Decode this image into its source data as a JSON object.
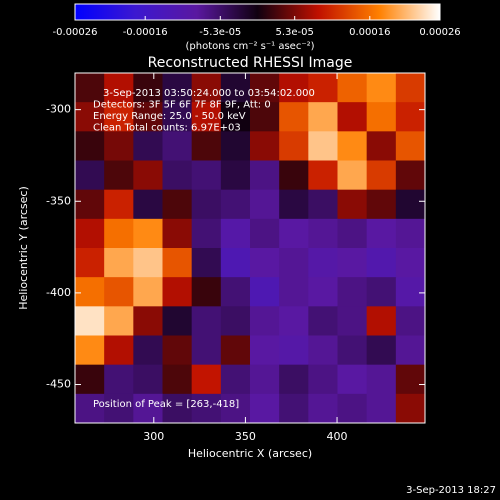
{
  "chart_data": {
    "type": "heatmap",
    "title": "Reconstructed RHESSI Image",
    "xlabel": "Heliocentric X (arcsec)",
    "ylabel": "Heliocentric Y (arcsec)",
    "colorbar_label": "(photons cm⁻² s⁻¹ asec⁻²)",
    "annotations": [
      "3-Sep-2013 03:50:24.000 to 03:54:02.000",
      "Detectors: 3F 5F 6F 7F 8F 9F, Att: 0",
      "Energy Range: 25.0 - 50.0 keV",
      "Clean     Total counts: 6.97E+03"
    ],
    "peak_label": "Position of Peak = [263,-418]",
    "timestamp": "3-Sep-2013 18:27",
    "xlim": [
      257,
      448
    ],
    "ylim": [
      -471,
      -280
    ],
    "xticks": [
      300,
      350,
      400
    ],
    "yticks": [
      -300,
      -350,
      -400,
      -450
    ],
    "clim": [
      -0.00026,
      0.00026
    ],
    "colormap": [
      "#0000ff",
      "#3c18d0",
      "#5a18a0",
      "#100010",
      "#c01000",
      "#ff8000",
      "#ffffff"
    ],
    "colorbar_ticks": [
      {
        "value": -0.00026,
        "label": "-0.00026"
      },
      {
        "value": -0.00016,
        "label": "-0.00016"
      },
      {
        "value": -5.3e-05,
        "label": "-5.3e-05"
      },
      {
        "value": 5.3e-05,
        "label": "5.3e-05"
      },
      {
        "value": 0.00016,
        "label": "0.00016"
      },
      {
        "value": 0.00026,
        "label": "0.00026"
      }
    ],
    "values": [
      [
        3e-05,
        8e-05,
        2e-05,
        -3e-05,
        6e-05,
        -2e-05,
        4e-05,
        8e-05,
        0.0001,
        0.00015,
        0.00018,
        0.00012
      ],
      [
        6e-05,
        0.0001,
        4e-05,
        -4e-05,
        8e-05,
        0,
        3e-05,
        0.00014,
        0.0002,
        8e-05,
        0.00016,
        0.0001
      ],
      [
        2e-05,
        5e-05,
        -4e-05,
        -6e-05,
        3e-05,
        -2e-05,
        6e-05,
        0.00012,
        0.00022,
        0.00018,
        6e-05,
        0.00014
      ],
      [
        -4e-05,
        3e-05,
        6e-05,
        -5e-05,
        -6e-05,
        -3e-05,
        -7e-05,
        2e-05,
        0.0001,
        0.0002,
        0.00012,
        4e-05
      ],
      [
        4e-05,
        0.0001,
        -3e-05,
        3e-05,
        -5e-05,
        -6e-05,
        -8e-05,
        -3e-05,
        -5e-05,
        6e-05,
        4e-05,
        -2e-05
      ],
      [
        8e-05,
        0.00016,
        0.00018,
        6e-05,
        -6e-05,
        -0.0001,
        -7e-05,
        -9e-05,
        -8e-05,
        -7e-05,
        -9e-05,
        -8e-05
      ],
      [
        0.0001,
        0.0002,
        0.00022,
        0.00014,
        -4e-05,
        -0.00012,
        -9e-05,
        -8e-05,
        -0.0001,
        -9e-05,
        -0.00011,
        -9e-05
      ],
      [
        0.00016,
        0.00014,
        0.0002,
        8e-05,
        2e-05,
        -6e-05,
        -0.00012,
        -8e-05,
        -9e-05,
        -7e-05,
        -6e-05,
        -0.0001
      ],
      [
        0.00024,
        0.0002,
        6e-05,
        -2e-05,
        -6e-05,
        -5e-05,
        -8e-05,
        -9e-05,
        -6e-05,
        -7e-05,
        8e-05,
        -7e-05
      ],
      [
        0.00018,
        8e-05,
        -4e-05,
        4e-05,
        -6e-05,
        4e-05,
        -9e-05,
        -0.0001,
        -8e-05,
        -6e-05,
        -4e-05,
        -8e-05
      ],
      [
        2e-05,
        -6e-05,
        -5e-05,
        3e-05,
        9e-05,
        -6e-05,
        -8e-05,
        -5e-05,
        -7e-05,
        -9e-05,
        -8e-05,
        4e-05
      ],
      [
        -7e-05,
        -6e-05,
        -8e-05,
        -5e-05,
        -6e-05,
        -7e-05,
        -9e-05,
        -6e-05,
        -8e-05,
        -7e-05,
        -8e-05,
        6e-05
      ]
    ]
  }
}
